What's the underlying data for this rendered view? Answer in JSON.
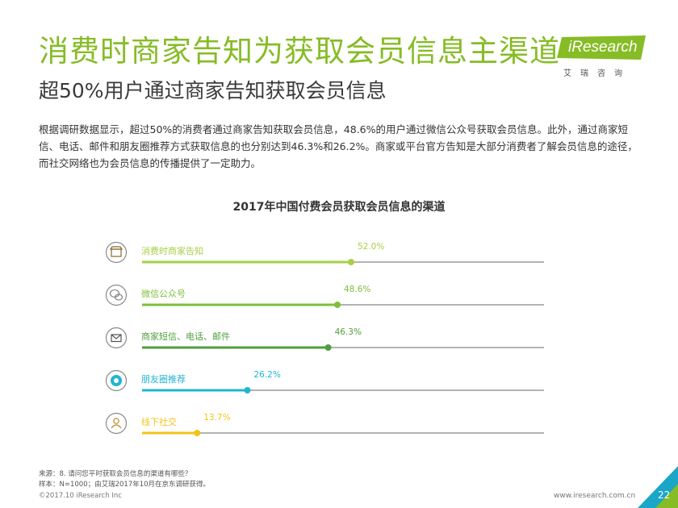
{
  "header": {
    "title": "消费时商家告知为获取会员信息主渠道",
    "subtitle": "超50%用户通过商家告知获取会员信息"
  },
  "logo": {
    "brand": "iResearch",
    "sub": "艾瑞咨询"
  },
  "body_text": "根据调研数据显示，超过50%的消费者通过商家告知获取会员信息，48.6%的用户通过微信公众号获取会员信息。此外，通过商家短信、电话、邮件和朋友圈推荐方式获取信息的也分别达到46.3%和26.2%。商家或平台官方告知是大部分消费者了解会员信息的途径，而社交网络也为会员信息的传播提供了一定助力。",
  "chart_data": {
    "type": "bar",
    "title": "2017年中国付费会员获取会员信息的渠道",
    "unit": "%",
    "categories": [
      "消费时商家告知",
      "微信公众号",
      "商家短信、电话、邮件",
      "朋友圈推荐",
      "线下社交"
    ],
    "values": [
      52.0,
      48.6,
      46.3,
      26.2,
      13.7
    ],
    "value_labels": [
      "52.0%",
      "48.6%",
      "46.3%",
      "26.2%",
      "13.7%"
    ],
    "colors": [
      "#a8cf45",
      "#7fbf3b",
      "#4f9e3e",
      "#21b5d3",
      "#f2c318"
    ],
    "icons": [
      "shop-icon",
      "wechat-icon",
      "mail-icon",
      "moments-icon",
      "person-icon"
    ],
    "xlim": [
      0,
      100
    ],
    "track_color": "#b3b3b3"
  },
  "footer": {
    "source": "来源：8. 请问您平时获取会员信息的渠道有哪些？",
    "sample": "样本：N=1000；由艾瑞2017年10月在京东调研获得。",
    "copyright": "©2017.10 iResearch Inc",
    "site": "www.iresearch.com.cn",
    "page": "22"
  },
  "colors": {
    "accent": "#86bc25",
    "corner": "#1aa6c7"
  }
}
